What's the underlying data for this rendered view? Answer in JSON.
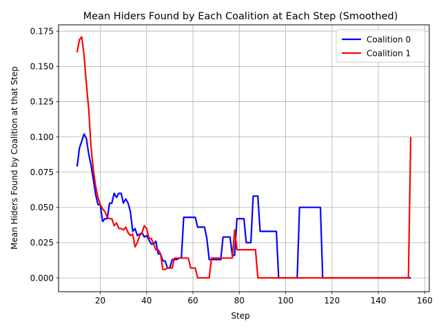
{
  "chart_data": {
    "type": "line",
    "title": "Mean Hiders Found by Each Coalition at Each Step (Smoothed)",
    "xlabel": "Step",
    "ylabel": "Mean Hiders Found by Coalition at that Step",
    "xlim": [
      2,
      162
    ],
    "ylim": [
      -0.0098,
      0.1795
    ],
    "xticks": [
      20,
      40,
      60,
      80,
      100,
      120,
      140,
      160
    ],
    "yticks": [
      0.0,
      0.025,
      0.05,
      0.075,
      0.1,
      0.125,
      0.15,
      0.175
    ],
    "xtick_labels": [
      "20",
      "40",
      "60",
      "80",
      "100",
      "120",
      "140",
      "160"
    ],
    "ytick_labels": [
      "0.000",
      "0.025",
      "0.050",
      "0.075",
      "0.100",
      "0.125",
      "0.150",
      "0.175"
    ],
    "grid": true,
    "legend_position": "upper-right",
    "series": [
      {
        "name": "Coalition 0",
        "color": "#0000ff",
        "x": [
          10,
          11,
          12,
          13,
          14,
          15,
          16,
          17,
          18,
          19,
          20,
          21,
          22,
          23,
          24,
          25,
          26,
          27,
          28,
          29,
          30,
          31,
          32,
          33,
          34,
          35,
          36,
          37,
          38,
          39,
          40,
          41,
          42,
          43,
          44,
          45,
          46,
          47,
          48,
          49,
          50,
          51,
          52,
          53,
          54,
          55,
          56,
          57,
          58,
          59,
          60,
          61,
          62,
          63,
          64,
          65,
          66,
          67,
          68,
          69,
          70,
          71,
          72,
          73,
          74,
          75,
          76,
          77,
          78,
          79,
          80,
          81,
          82,
          83,
          84,
          85,
          86,
          87,
          88,
          89,
          90,
          91,
          92,
          93,
          94,
          95,
          96,
          97,
          98,
          99,
          100,
          101,
          102,
          103,
          104,
          105,
          106,
          107,
          108,
          109,
          110,
          111,
          112,
          113,
          114,
          115,
          116,
          120,
          130,
          140,
          150,
          154
        ],
        "values": [
          0.079,
          0.092,
          0.097,
          0.102,
          0.099,
          0.088,
          0.08,
          0.07,
          0.059,
          0.052,
          0.052,
          0.04,
          0.042,
          0.042,
          0.053,
          0.053,
          0.06,
          0.057,
          0.06,
          0.06,
          0.053,
          0.056,
          0.053,
          0.047,
          0.033,
          0.035,
          0.03,
          0.031,
          0.032,
          0.029,
          0.03,
          0.027,
          0.024,
          0.024,
          0.026,
          0.017,
          0.017,
          0.012,
          0.012,
          0.007,
          0.007,
          0.013,
          0.013,
          0.013,
          0.014,
          0.014,
          0.043,
          0.043,
          0.043,
          0.043,
          0.043,
          0.043,
          0.036,
          0.036,
          0.036,
          0.036,
          0.028,
          0.013,
          0.013,
          0.013,
          0.013,
          0.013,
          0.013,
          0.029,
          0.029,
          0.029,
          0.029,
          0.016,
          0.016,
          0.042,
          0.042,
          0.042,
          0.042,
          0.025,
          0.025,
          0.025,
          0.058,
          0.058,
          0.058,
          0.033,
          0.033,
          0.033,
          0.033,
          0.033,
          0.033,
          0.033,
          0.033,
          0.0,
          0.0,
          0.0,
          0.0,
          0.0,
          0.0,
          0.0,
          0.0,
          0.0,
          0.05,
          0.05,
          0.05,
          0.05,
          0.05,
          0.05,
          0.05,
          0.05,
          0.05,
          0.05,
          0.0,
          0.0,
          0.0,
          0.0,
          0.0,
          0.0
        ]
      },
      {
        "name": "Coalition 1",
        "color": "#ff0000",
        "x": [
          10,
          11,
          12,
          13,
          14,
          15,
          16,
          17,
          18,
          19,
          20,
          21,
          22,
          23,
          24,
          25,
          26,
          27,
          28,
          29,
          30,
          31,
          32,
          33,
          34,
          35,
          36,
          37,
          38,
          39,
          40,
          41,
          42,
          43,
          44,
          45,
          46,
          47,
          48,
          49,
          50,
          51,
          52,
          53,
          54,
          55,
          56,
          57,
          58,
          59,
          60,
          61,
          62,
          63,
          64,
          65,
          66,
          67,
          68,
          69,
          70,
          71,
          72,
          73,
          74,
          75,
          76,
          77,
          78,
          79,
          80,
          81,
          82,
          83,
          84,
          85,
          86,
          87,
          88,
          89,
          90,
          100,
          110,
          120,
          130,
          140,
          150,
          153,
          154
        ],
        "values": [
          0.16,
          0.169,
          0.171,
          0.158,
          0.138,
          0.12,
          0.093,
          0.077,
          0.065,
          0.057,
          0.052,
          0.049,
          0.047,
          0.043,
          0.042,
          0.042,
          0.037,
          0.039,
          0.035,
          0.035,
          0.034,
          0.036,
          0.032,
          0.03,
          0.031,
          0.022,
          0.025,
          0.03,
          0.032,
          0.037,
          0.035,
          0.028,
          0.028,
          0.024,
          0.02,
          0.02,
          0.017,
          0.006,
          0.006,
          0.007,
          0.007,
          0.007,
          0.014,
          0.014,
          0.014,
          0.014,
          0.014,
          0.014,
          0.014,
          0.007,
          0.007,
          0.007,
          0.0,
          0.0,
          0.0,
          0.0,
          0.0,
          0.0,
          0.014,
          0.014,
          0.014,
          0.014,
          0.014,
          0.014,
          0.014,
          0.014,
          0.014,
          0.014,
          0.034,
          0.02,
          0.02,
          0.02,
          0.02,
          0.02,
          0.02,
          0.02,
          0.02,
          0.02,
          0.0,
          0.0,
          0.0,
          0.0,
          0.0,
          0.0,
          0.0,
          0.0,
          0.0,
          0.0,
          0.1
        ]
      }
    ]
  }
}
